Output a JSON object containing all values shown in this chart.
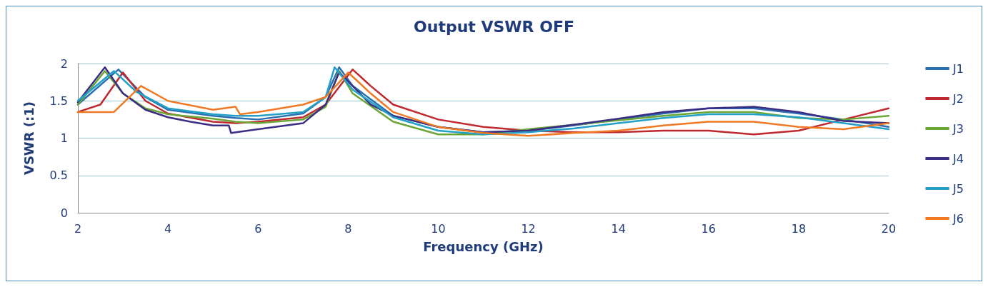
{
  "chart_data": {
    "type": "line",
    "title": "Output VSWR OFF",
    "xlabel": "Frequency (GHz)",
    "ylabel": "VSWR (:1)",
    "xlim": [
      2,
      20
    ],
    "xticks": [
      2,
      4,
      6,
      8,
      10,
      12,
      14,
      16,
      18,
      20
    ],
    "ylim": [
      0,
      2
    ],
    "yticks": [
      0,
      0.5,
      1,
      1.5,
      2
    ],
    "grid": "y",
    "legend": "right",
    "marker": "none",
    "line_style": "solid",
    "series": [
      {
        "name": "J1",
        "color": "#2a6fb0",
        "x": [
          2,
          2.9,
          3.5,
          4,
          5,
          5.5,
          6,
          7,
          7.5,
          7.8,
          8.1,
          9,
          10,
          11,
          12,
          13,
          14,
          15,
          16,
          17,
          18,
          19,
          20
        ],
        "values": [
          1.45,
          1.92,
          1.55,
          1.38,
          1.3,
          1.27,
          1.25,
          1.33,
          1.55,
          1.95,
          1.7,
          1.3,
          1.15,
          1.08,
          1.1,
          1.17,
          1.25,
          1.33,
          1.4,
          1.4,
          1.33,
          1.25,
          1.15
        ]
      },
      {
        "name": "J2",
        "color": "#c0282f",
        "x": [
          2,
          2.5,
          3,
          3.5,
          4,
          5,
          5.5,
          6,
          7,
          7.5,
          8.1,
          8.5,
          9,
          10,
          11,
          12,
          13,
          14,
          15,
          16,
          17,
          18,
          19,
          20
        ],
        "values": [
          1.35,
          1.45,
          1.88,
          1.5,
          1.33,
          1.22,
          1.2,
          1.22,
          1.28,
          1.45,
          1.92,
          1.7,
          1.45,
          1.25,
          1.15,
          1.1,
          1.08,
          1.08,
          1.1,
          1.1,
          1.05,
          1.1,
          1.25,
          1.4
        ]
      },
      {
        "name": "J3",
        "color": "#6aa535",
        "x": [
          2,
          2.6,
          3,
          3.5,
          4,
          5,
          5.5,
          6,
          7,
          7.5,
          7.8,
          8.1,
          9,
          10,
          11,
          12,
          13,
          14,
          15,
          16,
          17,
          18,
          19,
          20
        ],
        "values": [
          1.45,
          1.9,
          1.6,
          1.4,
          1.32,
          1.26,
          1.22,
          1.2,
          1.25,
          1.42,
          1.9,
          1.6,
          1.22,
          1.05,
          1.05,
          1.12,
          1.18,
          1.24,
          1.3,
          1.35,
          1.35,
          1.27,
          1.25,
          1.3
        ]
      },
      {
        "name": "J4",
        "color": "#3b2d84",
        "x": [
          2,
          2.6,
          3,
          3.5,
          4,
          4.5,
          5,
          5.35,
          5.4,
          6,
          7,
          7.5,
          7.8,
          8.1,
          8.5,
          9,
          10,
          11,
          12,
          13,
          14,
          15,
          16,
          17,
          18,
          19,
          20
        ],
        "values": [
          1.48,
          1.95,
          1.6,
          1.38,
          1.28,
          1.22,
          1.17,
          1.17,
          1.07,
          1.12,
          1.2,
          1.45,
          1.88,
          1.7,
          1.45,
          1.3,
          1.15,
          1.08,
          1.1,
          1.18,
          1.26,
          1.35,
          1.4,
          1.42,
          1.35,
          1.23,
          1.2
        ]
      },
      {
        "name": "J5",
        "color": "#23a0c8",
        "x": [
          2,
          2.8,
          3.3,
          4,
          5,
          5.5,
          6,
          7,
          7.5,
          7.7,
          8.1,
          9,
          10,
          11,
          12,
          13,
          14,
          15,
          16,
          17,
          18,
          19,
          20
        ],
        "values": [
          1.5,
          1.9,
          1.62,
          1.4,
          1.32,
          1.3,
          1.3,
          1.35,
          1.55,
          1.95,
          1.65,
          1.28,
          1.1,
          1.05,
          1.08,
          1.13,
          1.2,
          1.27,
          1.32,
          1.32,
          1.28,
          1.2,
          1.12
        ]
      },
      {
        "name": "J6",
        "color": "#f07a24",
        "x": [
          2,
          2.8,
          3.4,
          4,
          5,
          5.5,
          5.6,
          6,
          7,
          7.5,
          8,
          8.5,
          9,
          10,
          11,
          12,
          13,
          14,
          15,
          16,
          17,
          18,
          19,
          20
        ],
        "values": [
          1.35,
          1.35,
          1.7,
          1.5,
          1.38,
          1.42,
          1.32,
          1.35,
          1.45,
          1.55,
          1.88,
          1.6,
          1.35,
          1.15,
          1.07,
          1.03,
          1.07,
          1.1,
          1.17,
          1.22,
          1.22,
          1.15,
          1.12,
          1.2
        ]
      }
    ]
  }
}
